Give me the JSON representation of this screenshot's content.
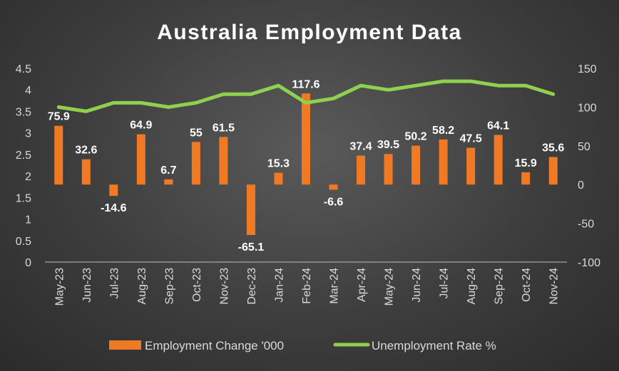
{
  "chart_data": {
    "type": "bar+line",
    "title": "Australia Employment Data",
    "categories": [
      "May-23",
      "Jun-23",
      "Jul-23",
      "Aug-23",
      "Sep-23",
      "Oct-23",
      "Nov-23",
      "Dec-23",
      "Jan-24",
      "Feb-24",
      "Mar-24",
      "Apr-24",
      "May-24",
      "Jun-24",
      "Jul-24",
      "Aug-24",
      "Sep-24",
      "Oct-24",
      "Nov-24"
    ],
    "series": [
      {
        "name": "Employment Change '000",
        "type": "bar",
        "axis": "right",
        "color": "#f07a24",
        "values": [
          75.9,
          32.6,
          -14.6,
          64.9,
          6.7,
          55,
          61.5,
          -65.1,
          15.3,
          117.6,
          -6.6,
          37.4,
          39.5,
          50.2,
          58.2,
          47.5,
          64.1,
          15.9,
          35.6
        ],
        "labels": [
          "75.9",
          "32.6",
          "-14.6",
          "64.9",
          "6.7",
          "55",
          "61.5",
          "-65.1",
          "15.3",
          "117.6",
          "-6.6",
          "37.4",
          "39.5",
          "50.2",
          "58.2",
          "47.5",
          "64.1",
          "15.9",
          "35.6"
        ]
      },
      {
        "name": "Unemployment Rate %",
        "type": "line",
        "axis": "left",
        "color": "#8fd14f",
        "values": [
          3.6,
          3.5,
          3.7,
          3.7,
          3.6,
          3.7,
          3.9,
          3.9,
          4.1,
          3.7,
          3.8,
          4.1,
          4.0,
          4.1,
          4.2,
          4.2,
          4.1,
          4.1,
          3.9
        ]
      }
    ],
    "y_left": {
      "min": 0,
      "max": 4.5,
      "ticks": [
        "0",
        "0.5",
        "1",
        "1.5",
        "2",
        "2.5",
        "3",
        "3.5",
        "4",
        "4.5"
      ]
    },
    "y_right": {
      "min": -100,
      "max": 150,
      "ticks": [
        "-100",
        "-50",
        "0",
        "50",
        "100",
        "150"
      ]
    },
    "grid": false,
    "legend_position": "bottom"
  }
}
